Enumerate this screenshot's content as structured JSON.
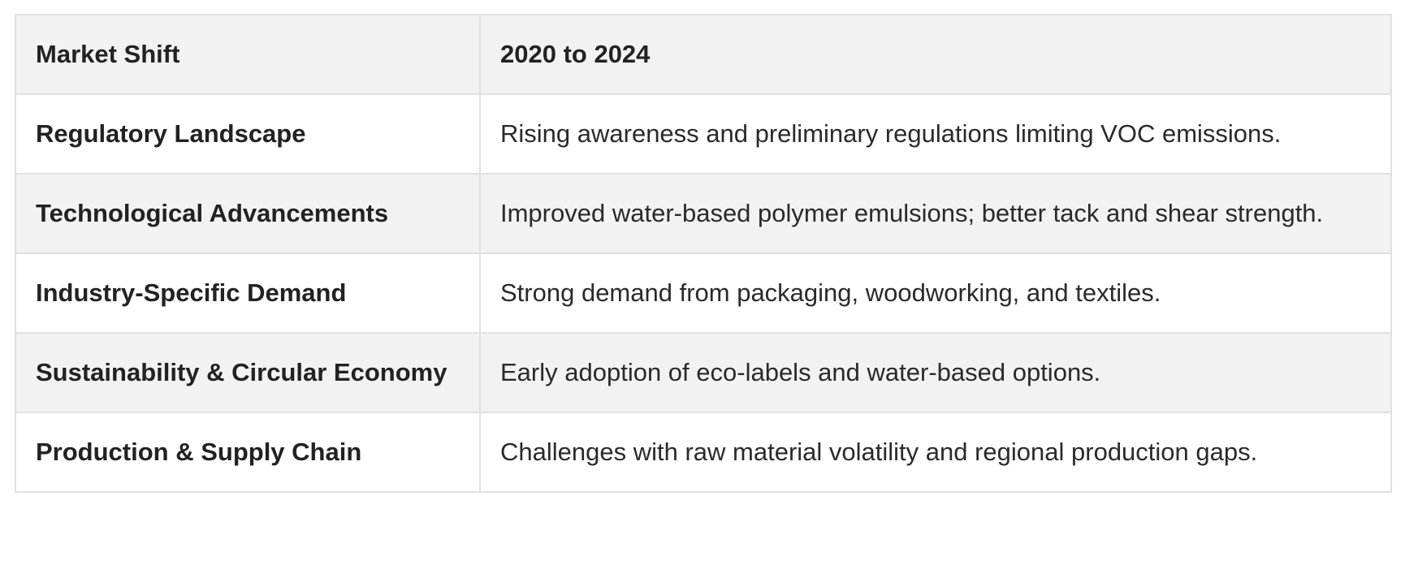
{
  "table": {
    "headers": [
      "Market Shift",
      "2020 to 2024"
    ],
    "rows": [
      {
        "shift": "Regulatory Landscape",
        "detail": "Rising awareness and preliminary regulations limiting VOC emissions."
      },
      {
        "shift": "Technological Advancements",
        "detail": "Improved water-based polymer emulsions; better tack and shear strength."
      },
      {
        "shift": "Industry-Specific Demand",
        "detail": "Strong demand from packaging, woodworking, and textiles."
      },
      {
        "shift": "Sustainability & Circular Economy",
        "detail": "Early adoption of eco-labels and water-based options."
      },
      {
        "shift": "Production & Supply Chain",
        "detail": "Challenges with raw material volatility and regional production gaps."
      }
    ]
  }
}
